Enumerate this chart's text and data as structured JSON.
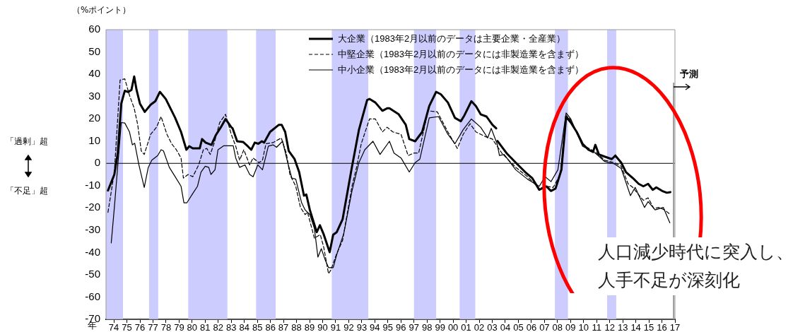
{
  "chart_data": {
    "type": "line",
    "ylabel": "（%ポイント）",
    "xlabel": "年",
    "xlim": [
      1973.4,
      2017.0
    ],
    "xticks": [
      {
        "value": 1974,
        "label": "74"
      },
      {
        "value": 1975,
        "label": "75"
      },
      {
        "value": 1976,
        "label": "76"
      },
      {
        "value": 1977,
        "label": "77"
      },
      {
        "value": 1978,
        "label": "78"
      },
      {
        "value": 1979,
        "label": "79"
      },
      {
        "value": 1980,
        "label": "80"
      },
      {
        "value": 1981,
        "label": "81"
      },
      {
        "value": 1982,
        "label": "82"
      },
      {
        "value": 1983,
        "label": "83"
      },
      {
        "value": 1984,
        "label": "84"
      },
      {
        "value": 1985,
        "label": "85"
      },
      {
        "value": 1986,
        "label": "86"
      },
      {
        "value": 1987,
        "label": "87"
      },
      {
        "value": 1988,
        "label": "88"
      },
      {
        "value": 1989,
        "label": "89"
      },
      {
        "value": 1990,
        "label": "90"
      },
      {
        "value": 1991,
        "label": "91"
      },
      {
        "value": 1992,
        "label": "92"
      },
      {
        "value": 1993,
        "label": "93"
      },
      {
        "value": 1994,
        "label": "94"
      },
      {
        "value": 1995,
        "label": "95"
      },
      {
        "value": 1996,
        "label": "96"
      },
      {
        "value": 1997,
        "label": "97"
      },
      {
        "value": 1998,
        "label": "98"
      },
      {
        "value": 1999,
        "label": "99"
      },
      {
        "value": 2000,
        "label": "00"
      },
      {
        "value": 2001,
        "label": "01"
      },
      {
        "value": 2002,
        "label": "02"
      },
      {
        "value": 2003,
        "label": "03"
      },
      {
        "value": 2004,
        "label": "04"
      },
      {
        "value": 2005,
        "label": "05"
      },
      {
        "value": 2006,
        "label": "06"
      },
      {
        "value": 2007,
        "label": "07"
      },
      {
        "value": 2008,
        "label": "08"
      },
      {
        "value": 2009,
        "label": "09"
      },
      {
        "value": 2010,
        "label": "10"
      },
      {
        "value": 2011,
        "label": "11"
      },
      {
        "value": 2012,
        "label": "12"
      },
      {
        "value": 2013,
        "label": "13"
      },
      {
        "value": 2014,
        "label": "14"
      },
      {
        "value": 2015,
        "label": "15"
      },
      {
        "value": 2016,
        "label": "16"
      },
      {
        "value": 2017,
        "label": "17"
      }
    ],
    "ylim": [
      -70,
      60
    ],
    "yticks": [
      -70,
      -60,
      -50,
      -40,
      -30,
      -20,
      -10,
      0,
      10,
      20,
      30,
      40,
      50,
      60
    ],
    "grid": false,
    "legend": "top",
    "marker": "none",
    "series": [
      {
        "name": "大企業（1983年2月以前のデータは主要企業・全産業）",
        "color": "#000000",
        "line_style": "solid",
        "x": [
          1973.55,
          1974.04,
          1974.3,
          1974.57,
          1974.84,
          1975.1,
          1975.35,
          1975.56,
          1975.74,
          1976.0,
          1976.37,
          1976.82,
          1977.18,
          1977.53,
          1977.98,
          1978.25,
          1978.7,
          1979.15,
          1979.56,
          1979.78,
          1980.05,
          1980.58,
          1980.76,
          1981.03,
          1981.48,
          1981.8,
          1982.2,
          1982.56,
          1983.0,
          1983.1,
          1983.45,
          1983.9,
          1984.26,
          1984.53,
          1984.8,
          1985.07,
          1985.34,
          1985.52,
          1985.97,
          1986.65,
          1986.86,
          1987.13,
          1987.4,
          1987.85,
          1988.2,
          1988.57,
          1988.75,
          1989.02,
          1989.55,
          1989.79,
          1990.09,
          1990.54,
          1990.81,
          1991.08,
          1991.53,
          1992.24,
          1992.78,
          1993.41,
          1993.59,
          1994.04,
          1994.58,
          1994.94,
          1995.12,
          1995.83,
          1996.37,
          1996.64,
          1997.09,
          1997.63,
          1998.17,
          1998.7,
          1999.06,
          1999.6,
          2000.14,
          2000.59,
          2000.86,
          2001.4,
          2001.75,
          2002.11,
          2002.56,
          2003.01,
          2003.3,
          2003.35,
          2003.4,
          2004.09,
          2004.8,
          2005.52,
          2006.06,
          2006.6,
          2007.14,
          2007.5,
          2007.85,
          2008.3,
          2008.66,
          2009.02,
          2009.47,
          2009.92,
          2010.37,
          2010.72,
          2010.9,
          2011.17,
          2011.62,
          2012.16,
          2012.43,
          2012.88,
          2013.24,
          2013.77,
          2014.22,
          2014.58,
          2014.94,
          2015.3,
          2015.57,
          2016.02,
          2016.38,
          2016.65
        ],
        "values": [
          -12.2,
          -5,
          4.6,
          26.8,
          32.6,
          32,
          33,
          39,
          33,
          26.8,
          23.1,
          26.3,
          27.9,
          32.1,
          28.9,
          25.7,
          20.4,
          14.1,
          6.1,
          7.7,
          6.7,
          6.7,
          10.9,
          9.3,
          8.3,
          12.5,
          16.2,
          19.9,
          16.2,
          15.7,
          9.9,
          9.6,
          7.7,
          6.1,
          9.3,
          8.8,
          9.9,
          9.3,
          14.1,
          17.3,
          17.3,
          14.1,
          5.6,
          1.9,
          -3.9,
          -14.5,
          -14,
          -20.9,
          -30.9,
          -27.8,
          -32,
          -39.9,
          -32,
          -30.9,
          -25.1,
          -1.8,
          15,
          28.4,
          28.9,
          27.3,
          23.6,
          24.7,
          24.7,
          22,
          17.3,
          10.9,
          9.9,
          14.1,
          25.7,
          32.1,
          31,
          27.3,
          20.4,
          18.9,
          21.5,
          27.9,
          25.7,
          22,
          21,
          17.3,
          15.7,
          null,
          10,
          4.6,
          0.3,
          -3.9,
          -6.6,
          -11.9,
          -10.3,
          -12.4,
          -11.3,
          -2.9,
          21,
          18.3,
          14.1,
          8.8,
          6.1,
          5.1,
          8.3,
          4,
          3,
          1.9,
          3.5,
          0.3,
          -3.9,
          -6.6,
          -9.2,
          -10.3,
          -9.2,
          -11.9,
          -10.8,
          -12.4,
          -13.2,
          -12.9
        ]
      },
      {
        "name": "中堅企業（1983年2月以前のデータには非製造業を含まず）",
        "color": "#000000",
        "line_style": "dashed",
        "x": [
          1973.55,
          1974.04,
          1974.48,
          1974.84,
          1975.2,
          1975.56,
          1975.83,
          1976.1,
          1976.33,
          1976.82,
          1977.27,
          1977.62,
          1978.07,
          1978.43,
          1978.79,
          1979.15,
          1979.33,
          1979.69,
          1980.05,
          1980.5,
          1980.86,
          1981.12,
          1981.39,
          1981.7,
          1982.11,
          1982.56,
          1983.0,
          1983.34,
          1983.64,
          1983.96,
          1984.41,
          1984.67,
          1985.12,
          1985.39,
          1985.66,
          1986.2,
          1986.83,
          1987.22,
          1987.49,
          1987.94,
          1988.3,
          1988.66,
          1988.84,
          1989.37,
          1989.82,
          1990.09,
          1990.45,
          1990.63,
          1991.08,
          1991.53,
          1992.25,
          1992.6,
          1992.96,
          1993.59,
          1994.04,
          1994.58,
          1994.94,
          1995.38,
          1996.01,
          1996.55,
          1997.0,
          1997.36,
          1998.08,
          1998.79,
          1999.6,
          2000.32,
          2000.77,
          2001.3,
          2001.75,
          2002.47,
          2003.01,
          2003.73,
          2004.8,
          2005.7,
          2006.6,
          2007.14,
          2007.67,
          2008.21,
          2008.66,
          2009.02,
          2009.92,
          2010.9,
          2011.62,
          2012.34,
          2012.88,
          2013.41,
          2013.77,
          2014.13,
          2014.58,
          2014.94,
          2015.39,
          2015.75,
          2016.2,
          2016.65
        ],
        "values": [
          -22,
          -3.9,
          37.4,
          37.9,
          30.5,
          24.7,
          17.3,
          5.6,
          4,
          13,
          16.2,
          21,
          13,
          8.8,
          6.1,
          2.4,
          -6.6,
          -5,
          -6,
          -0.7,
          6.1,
          6.7,
          4,
          9.3,
          18.3,
          22,
          13,
          7.7,
          1.4,
          6.1,
          -0.7,
          2.4,
          0.3,
          1.4,
          8.8,
          9.3,
          11.4,
          4.6,
          -5,
          -10.3,
          -19.8,
          -23,
          -21.9,
          -33.6,
          -32,
          -37.8,
          -49.5,
          -47.9,
          -40.5,
          -34.6,
          -10.3,
          -1.8,
          8.8,
          19.9,
          19.9,
          14.1,
          16.2,
          14.1,
          13,
          3.5,
          4.6,
          4.6,
          23.6,
          23.1,
          14.1,
          6.7,
          13,
          17.8,
          14.1,
          12,
          10.9,
          4.6,
          -1.8,
          -6,
          -11.3,
          -10.3,
          -10.8,
          -5,
          21.5,
          19.4,
          8.3,
          5.1,
          1.4,
          0.3,
          -1.3,
          -9.2,
          -10.8,
          -13.5,
          -16.6,
          -15.5,
          -20.3,
          -19.8,
          -20.9,
          -23
        ]
      },
      {
        "name": "中小企業（1983年2月以前のデータには非製造業を含まず）",
        "color": "#000000",
        "line_style": "solid",
        "x": [
          1973.8,
          1974.04,
          1974.57,
          1974.84,
          1975.2,
          1975.42,
          1975.6,
          1975.92,
          1976.33,
          1976.64,
          1976.91,
          1977.36,
          1977.62,
          1977.8,
          1978.25,
          1978.7,
          1979.15,
          1979.37,
          1979.6,
          1980.05,
          1980.41,
          1980.68,
          1981.0,
          1981.27,
          1981.44,
          1981.75,
          1981.98,
          1982.43,
          1983.15,
          1983.34,
          1983.64,
          1984.05,
          1984.41,
          1984.67,
          1985.03,
          1985.39,
          1985.84,
          1986.2,
          1986.47,
          1986.93,
          1987.28,
          1987.64,
          1987.94,
          1988.39,
          1988.66,
          1989.02,
          1989.37,
          1989.64,
          1989.9,
          1990.18,
          1990.45,
          1990.81,
          1991.08,
          1991.62,
          1992.25,
          1992.78,
          1993.23,
          1993.86,
          1994.4,
          1995.12,
          1995.47,
          1996.01,
          1996.64,
          1997.09,
          1997.45,
          1998.17,
          1998.88,
          1999.6,
          2000.14,
          2000.77,
          2001.4,
          2002.11,
          2002.65,
          2002.92,
          2003.37,
          2003.55,
          2003.91,
          2004.8,
          2005.7,
          2006.6,
          2007.05,
          2007.5,
          2008.03,
          2008.66,
          2009.02,
          2009.92,
          2010.9,
          2011.62,
          2012.34,
          2012.88,
          2013.59,
          2013.95,
          2014.67,
          2014.94,
          2015.48,
          2016.11,
          2016.61
        ],
        "values": [
          -35.7,
          -19.8,
          18.3,
          18.1,
          14.1,
          8.3,
          9,
          -0.7,
          -10.8,
          -1.8,
          1.4,
          3.5,
          6.1,
          5.6,
          -1.8,
          -6,
          -10.3,
          -17.7,
          -17.7,
          -13.5,
          -10.3,
          -3.9,
          -1.3,
          -1.8,
          -5,
          -2.9,
          6.1,
          7.9,
          7.9,
          2.4,
          -1.8,
          -0.7,
          -5,
          -6,
          -0.7,
          -2.9,
          7.7,
          8.3,
          7.2,
          9.9,
          1.4,
          -6.6,
          -7.1,
          -17.7,
          -20.9,
          -23,
          -29.3,
          -42.1,
          -38.3,
          -43.1,
          -46.8,
          -46.8,
          -41,
          -31.5,
          -12.4,
          0.3,
          6.1,
          9.9,
          4,
          9.9,
          4.6,
          2.4,
          -3.9,
          0.3,
          1.9,
          20.4,
          21,
          13,
          8.8,
          15.1,
          19.9,
          16.2,
          11.4,
          15.7,
          8.8,
          3.5,
          4,
          -2.9,
          -7.1,
          -10.3,
          -6,
          -8.2,
          -2.9,
          22.6,
          19.9,
          7.7,
          4.6,
          0.8,
          -0.2,
          -2.3,
          -14.5,
          -10.8,
          -19.8,
          -17.2,
          -20.9,
          -19.8,
          -26.7
        ]
      }
    ],
    "bands": [
      {
        "axis": "x",
        "from": 1973.4,
        "to": 1974.7,
        "color": "#ccccff"
      },
      {
        "axis": "x",
        "from": 1976.7,
        "to": 1977.4,
        "color": "#ccccff"
      },
      {
        "axis": "x",
        "from": 1979.7,
        "to": 1982.7,
        "color": "#ccccff"
      },
      {
        "axis": "x",
        "from": 1984.9,
        "to": 1986.4,
        "color": "#ccccff"
      },
      {
        "axis": "x",
        "from": 1990.7,
        "to": 1993.5,
        "color": "#ccccff"
      },
      {
        "axis": "x",
        "from": 1997.0,
        "to": 1998.7,
        "color": "#ccccff"
      },
      {
        "axis": "x",
        "from": 2000.5,
        "to": 2001.7,
        "color": "#ccccff"
      },
      {
        "axis": "x",
        "from": 2007.8,
        "to": 2008.8,
        "color": "#ccccff"
      },
      {
        "axis": "x",
        "from": 2011.8,
        "to": 2012.5,
        "color": "#ccccff"
      }
    ],
    "ref_lines": [
      {
        "axis": "y",
        "value": 0,
        "color": "#000000"
      },
      {
        "axis": "x",
        "value": 2016.9,
        "label": "予測",
        "color": "#999999"
      }
    ],
    "annotations": [
      "「過剰」超",
      "「不足」超",
      "人口減少時代に突入し、",
      "人手不足が深刻化"
    ]
  }
}
